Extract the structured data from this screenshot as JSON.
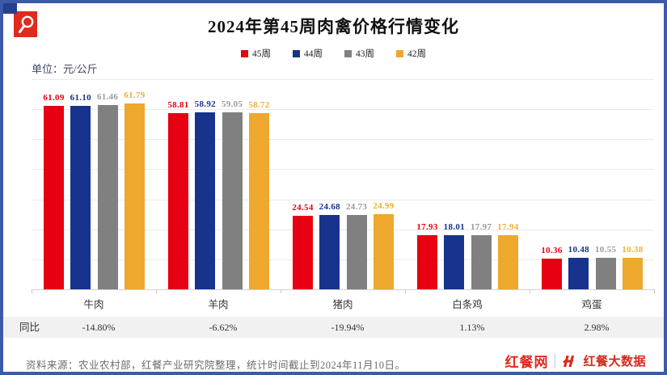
{
  "header": {
    "title": "2024年第45周肉禽价格行情变化",
    "unit_label": "单位：元/公斤"
  },
  "legend": [
    {
      "label": "45周",
      "color": "#e60012"
    },
    {
      "label": "44周",
      "color": "#17338d"
    },
    {
      "label": "43周",
      "color": "#808080"
    },
    {
      "label": "42周",
      "color": "#edа82d"
    }
  ],
  "chart_data": {
    "type": "bar",
    "title": "2024年第45周肉禽价格行情变化",
    "ylabel": "元/公斤",
    "ylim": [
      0,
      70
    ],
    "grid": true,
    "grid_step": 10,
    "legend_position": "top",
    "categories": [
      "牛肉",
      "羊肉",
      "猪肉",
      "白条鸡",
      "鸡蛋"
    ],
    "series": [
      {
        "name": "45周",
        "color": "#e60012",
        "label_color": "#e60012",
        "values": [
          61.09,
          58.81,
          24.54,
          17.93,
          10.36
        ]
      },
      {
        "name": "44周",
        "color": "#17338d",
        "label_color": "#17338d",
        "values": [
          61.1,
          58.92,
          24.68,
          18.01,
          10.48
        ]
      },
      {
        "name": "43周",
        "color": "#808080",
        "label_color": "#9a9a9a",
        "values": [
          61.46,
          59.05,
          24.73,
          17.97,
          10.55
        ]
      },
      {
        "name": "42周",
        "color": "#eda82d",
        "label_color": "#f2ae35",
        "values": [
          61.79,
          58.72,
          24.99,
          17.94,
          10.38
        ]
      }
    ]
  },
  "yoy": {
    "label": "同比",
    "values": [
      "-14.80%",
      "-6.62%",
      "-19.94%",
      "1.13%",
      "2.98%"
    ]
  },
  "footer": {
    "source": "资料来源：农业农村部，红餐产业研究院整理，统计时间截止到2024年11月10日。",
    "brand_left": "红餐网",
    "brand_right": "红餐大数据"
  },
  "colors": {
    "border": "#3d5aa8",
    "corner_square": "#24418e",
    "magnifier_box": "#e02a1e",
    "gridline": "#ebebeb",
    "yoy_band": "#f1f1f1",
    "brand_red": "#e0281e"
  }
}
